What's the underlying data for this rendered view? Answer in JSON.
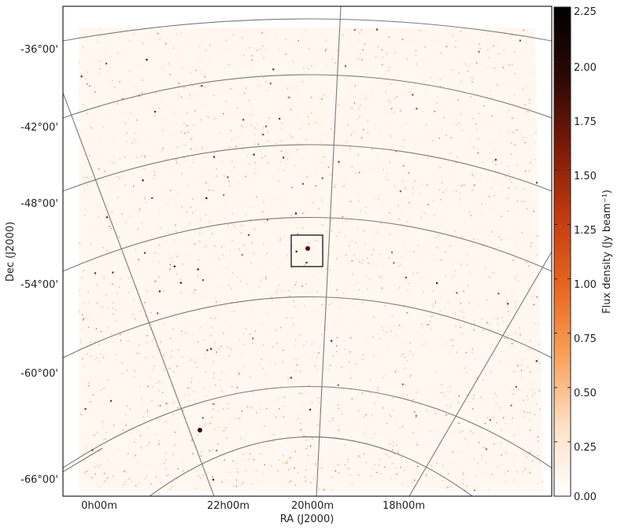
{
  "figure": {
    "xlabel": "RA (J2000)",
    "ylabel": "Dec (J2000)",
    "colorbar_label": "Flux density (Jy beam⁻¹)",
    "dec_ticks": [
      "-36°00'",
      "-42°00'",
      "-48°00'",
      "-54°00'",
      "-60°00'",
      "-66°00'"
    ],
    "ra_ticks": [
      "0h00m",
      "22h00m",
      "20h00m",
      "18h00m"
    ],
    "colorbar_ticks": [
      "2.25",
      "2.00",
      "1.75",
      "1.50",
      "1.25",
      "1.00",
      "0.75",
      "0.50",
      "0.25",
      "0.00"
    ],
    "colorbar_range": [
      0.0,
      2.25
    ],
    "colormap": [
      "#ffffff",
      "#fde0c5",
      "#f9a25a",
      "#e8661d",
      "#c23a10",
      "#7a1a08",
      "#2a0804",
      "#000000"
    ],
    "grid_color": "#7a7a7a",
    "inset_box": true
  }
}
